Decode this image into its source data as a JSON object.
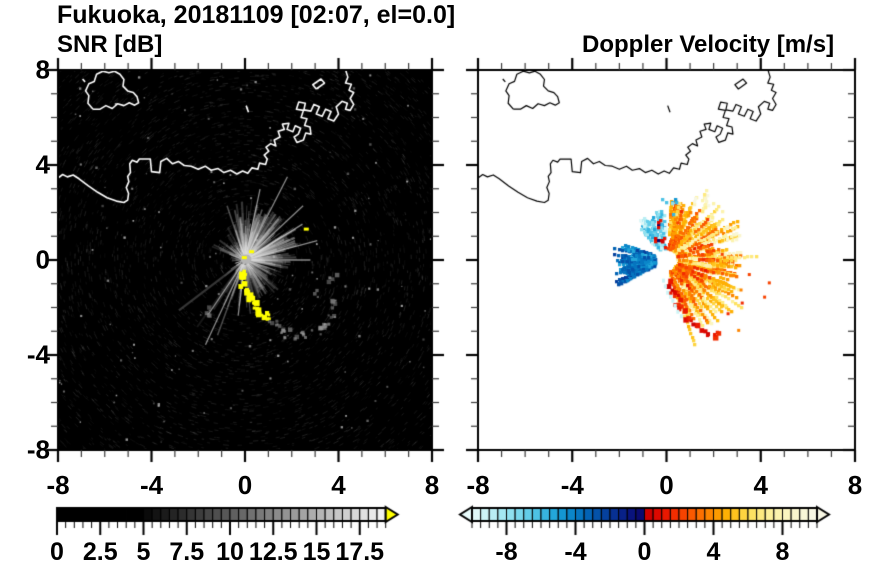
{
  "header": {
    "title": "Fukuoka, 20181109 [02:07, el=0.0]"
  },
  "panels": {
    "snr": {
      "subtitle": "SNR [dB]"
    },
    "velocity": {
      "subtitle": "Doppler Velocity [m/s]"
    }
  },
  "axes": {
    "xlim": [
      -8,
      8
    ],
    "ylim": [
      -8,
      8
    ],
    "x_tick_values": [
      -8,
      -4,
      0,
      4,
      8
    ],
    "x_tick_labels": [
      "-8",
      "-4",
      "0",
      "4",
      "8"
    ],
    "y_tick_values": [
      8,
      4,
      0,
      -4,
      -8
    ],
    "y_tick_labels": [
      "8",
      "4",
      "0",
      "-4",
      "-8"
    ],
    "minor_step": 1
  },
  "colorbars": {
    "snr": {
      "range": [
        0,
        19
      ],
      "cell_step": 0.5,
      "black_below": 5,
      "tick_values": [
        0,
        2.5,
        5,
        7.5,
        10,
        12.5,
        15,
        17.5
      ],
      "tick_labels": [
        "0",
        "2.5",
        "5",
        "7.5",
        "10",
        "12.5",
        "15",
        "17.5"
      ],
      "minor_step": 0.5,
      "over_arrow_color": "#ffff00"
    },
    "velocity": {
      "range": [
        -10,
        10
      ],
      "cell_step": 0.5,
      "tick_values": [
        -8,
        -4,
        0,
        4,
        8
      ],
      "tick_labels": [
        "-8",
        "-4",
        "0",
        "4",
        "8"
      ],
      "minor_step": 0.5,
      "under_arrow_color": "#e8fbfb",
      "over_arrow_color": "#f8f7e4",
      "palette_negative": [
        "#e0f8f8",
        "#cdf4f6",
        "#b9eef4",
        "#a4e8f2",
        "#8fe0ef",
        "#79d7ec",
        "#63cde9",
        "#4dc2e5",
        "#37b5e0",
        "#23a7da",
        "#1497d2",
        "#0b86c9",
        "#0675bf",
        "#0363b4",
        "#0452a9",
        "#05419e",
        "#073093",
        "#082188",
        "#09137d",
        "#0a0a70"
      ],
      "palette_positive": [
        "#cd0000",
        "#dd0800",
        "#ea1800",
        "#f22d00",
        "#f84300",
        "#fb5900",
        "#fc6f00",
        "#fd8500",
        "#fd9b00",
        "#feb004",
        "#fec31e",
        "#fed440",
        "#fee262",
        "#feea80",
        "#fdf09a",
        "#fcf3ae",
        "#fbf5c0",
        "#faf6ce",
        "#f9f7d8",
        "#f8f7e2"
      ]
    }
  },
  "chart_data": [
    {
      "type": "heatmap",
      "title": "SNR [dB]",
      "units": "dB",
      "xlim": [
        -8,
        8
      ],
      "ylim": [
        -8,
        8
      ],
      "radar_center": [
        0,
        0
      ],
      "background": "#000000",
      "fan_sectors": [
        {
          "az": [
            340,
            460
          ],
          "rmax": 2.6,
          "snr": [
            7,
            16
          ],
          "n": 260
        },
        {
          "az": [
            100,
            170
          ],
          "rmax": 1.9,
          "snr": [
            6,
            11
          ],
          "n": 100
        },
        {
          "az": [
            170,
            200
          ],
          "rmax": 2.6,
          "snr": [
            6,
            12
          ],
          "n": 30
        },
        {
          "az": [
            200,
            235
          ],
          "rmax": 4.0,
          "snr": [
            8,
            15
          ],
          "n": 16
        },
        {
          "az": [
            285,
            340
          ],
          "rmax": 1.6,
          "snr": [
            6,
            9
          ],
          "n": 45
        }
      ],
      "bright_rays": [
        [
          27,
          4.0
        ],
        [
          12,
          3.1
        ],
        [
          47,
          3.4
        ],
        [
          58,
          2.9
        ],
        [
          90,
          2.8
        ],
        [
          75,
          3.2
        ],
        [
          205,
          4.0
        ],
        [
          214,
          2.8
        ],
        [
          187,
          2.4
        ]
      ],
      "saturated_arc": [
        [
          -0.12,
          -0.5
        ],
        [
          -0.18,
          -0.75
        ],
        [
          -0.12,
          -1.0
        ],
        [
          -0.02,
          -1.22
        ],
        [
          0.1,
          -1.42
        ],
        [
          0.22,
          -1.6
        ],
        [
          0.33,
          -1.8
        ],
        [
          0.46,
          -1.98
        ],
        [
          0.6,
          -2.12
        ],
        [
          0.78,
          -2.28
        ],
        [
          0.95,
          -2.35
        ]
      ],
      "saturated_specks": [
        [
          2.6,
          1.3
        ],
        [
          0.26,
          0.35
        ],
        [
          -0.05,
          0.1
        ]
      ],
      "clutter_blobs": [
        [
          1.1,
          -2.62
        ],
        [
          1.45,
          -2.85
        ],
        [
          1.8,
          -3.05
        ],
        [
          2.2,
          -3.15
        ],
        [
          2.6,
          -3.1
        ],
        [
          3.0,
          -2.95
        ],
        [
          3.3,
          -2.6
        ],
        [
          3.6,
          -2.15
        ],
        [
          3.85,
          -1.6
        ],
        [
          3.65,
          -0.7
        ],
        [
          2.95,
          -1.35
        ],
        [
          -1.7,
          -2.1
        ]
      ]
    },
    {
      "type": "heatmap",
      "title": "Doppler Velocity [m/s]",
      "units": "m/s",
      "xlim": [
        -8,
        8
      ],
      "ylim": [
        -8,
        8
      ],
      "radar_center": [
        0,
        0
      ],
      "background": "#ffffff",
      "sectors": [
        {
          "name": "west-approaching-fan",
          "az": [
            242,
            290
          ],
          "r": [
            0.35,
            1.75
          ],
          "vel": [
            -5.5,
            -2.5
          ],
          "n": 120,
          "run": [
            2,
            5
          ]
        },
        {
          "name": "nw-strong-approaching-patch",
          "az": [
            320,
            358
          ],
          "r": [
            0.35,
            1.95
          ],
          "vel": [
            -9.5,
            -5.5
          ],
          "n": 80,
          "run": [
            1,
            3
          ]
        },
        {
          "name": "nw-red-specks",
          "az": [
            322,
            356
          ],
          "r": [
            0.5,
            1.7
          ],
          "vel": [
            0.3,
            1.5
          ],
          "n": 12,
          "run": [
            1,
            1
          ]
        },
        {
          "name": "nne-receding-fan",
          "az": [
            3,
            40
          ],
          "r": [
            0.35,
            2.2
          ],
          "vel": [
            2,
            6
          ],
          "n": 70,
          "run": [
            2,
            5
          ]
        },
        {
          "name": "east-receding-fan",
          "az": [
            40,
            168
          ],
          "r": [
            0.35,
            2.7
          ],
          "vel": [
            3,
            8.5
          ],
          "n": 200,
          "run": [
            3,
            8
          ]
        },
        {
          "name": "east-orange-clumps",
          "az": [
            60,
            165
          ],
          "r": [
            0.4,
            1.8
          ],
          "vel": [
            1.5,
            4
          ],
          "n": 60,
          "run": [
            2,
            4
          ]
        },
        {
          "name": "far-pale-sparse",
          "az": [
            25,
            75
          ],
          "r": [
            2.6,
            3.3
          ],
          "vel": [
            7,
            9.5
          ],
          "n": 25,
          "run": [
            1,
            2
          ]
        },
        {
          "name": "north-blue-specks",
          "az": [
            348,
            372
          ],
          "r": [
            1.9,
            2.7
          ],
          "vel": [
            -8,
            -5
          ],
          "n": 10,
          "run": [
            1,
            1
          ]
        }
      ],
      "south_arc": [
        [
          0.02,
          -0.85
        ],
        [
          0.1,
          -1.05
        ],
        [
          0.2,
          -1.3
        ],
        [
          0.32,
          -1.5
        ],
        [
          0.42,
          -1.7
        ],
        [
          0.52,
          -1.9
        ],
        [
          0.63,
          -2.1
        ],
        [
          0.78,
          -2.3
        ],
        [
          0.95,
          -2.5
        ],
        [
          1.15,
          -2.7
        ],
        [
          1.45,
          -2.85
        ],
        [
          1.75,
          -3.0
        ],
        [
          2.05,
          -3.1
        ]
      ],
      "south_arc_vel": [
        0.2,
        2.0
      ],
      "south_arc_edge_vel": -9.5,
      "specks": [
        [
          3.1,
          -1.2
        ],
        [
          3.15,
          -1.75
        ],
        [
          4.1,
          -1.5
        ],
        [
          3.0,
          -2.9
        ],
        [
          2.55,
          -2.2
        ],
        [
          3.45,
          -0.55
        ],
        [
          2.3,
          0.3
        ],
        [
          4.3,
          -0.9
        ]
      ],
      "specks_vel": [
        1.5,
        4
      ],
      "center_hole_radius": 0.3
    }
  ],
  "coastline": {
    "stroke_snr": "#ffffff",
    "stroke_velocity": "#000000",
    "polylines": [
      [
        [
          -8,
          3.45
        ],
        [
          -7.8,
          3.6
        ],
        [
          -7.6,
          3.5
        ],
        [
          -7.35,
          3.58
        ],
        [
          -7.1,
          3.42
        ],
        [
          -6.7,
          3.12
        ],
        [
          -6.3,
          2.85
        ],
        [
          -5.9,
          2.62
        ],
        [
          -5.5,
          2.48
        ],
        [
          -5.18,
          2.42
        ],
        [
          -5.02,
          2.52
        ],
        [
          -4.98,
          2.8
        ],
        [
          -5.08,
          3.05
        ],
        [
          -4.97,
          3.3
        ],
        [
          -5.02,
          3.52
        ],
        [
          -4.9,
          3.68
        ],
        [
          -4.93,
          4.05
        ],
        [
          -4.82,
          4.2
        ],
        [
          -4.62,
          4.12
        ],
        [
          -4.52,
          4.25
        ],
        [
          -4.05,
          4.25
        ],
        [
          -4.0,
          3.72
        ],
        [
          -3.65,
          3.68
        ],
        [
          -3.6,
          4.15
        ],
        [
          -3.35,
          4.28
        ],
        [
          -3.1,
          4.05
        ],
        [
          -2.85,
          4.15
        ],
        [
          -2.6,
          3.98
        ],
        [
          -2.3,
          3.95
        ],
        [
          -2.0,
          3.82
        ],
        [
          -1.7,
          3.95
        ],
        [
          -1.45,
          3.78
        ],
        [
          -1.15,
          3.85
        ],
        [
          -0.9,
          3.68
        ],
        [
          -0.62,
          3.78
        ],
        [
          -0.35,
          3.62
        ],
        [
          -0.1,
          3.75
        ],
        [
          0.12,
          3.65
        ],
        [
          0.3,
          3.88
        ],
        [
          0.55,
          3.82
        ],
        [
          0.62,
          4.08
        ],
        [
          0.88,
          4.02
        ],
        [
          0.95,
          4.25
        ],
        [
          0.82,
          4.42
        ],
        [
          1.02,
          4.58
        ],
        [
          0.9,
          4.75
        ],
        [
          1.1,
          4.9
        ],
        [
          1.32,
          4.8
        ],
        [
          1.25,
          5.05
        ],
        [
          1.5,
          5.18
        ],
        [
          1.42,
          5.42
        ],
        [
          1.68,
          5.5
        ],
        [
          1.6,
          5.72
        ],
        [
          1.88,
          5.76
        ],
        [
          1.8,
          5.5
        ],
        [
          2.05,
          5.4
        ],
        [
          2.15,
          5.65
        ],
        [
          2.38,
          5.55
        ],
        [
          2.28,
          5.3
        ],
        [
          2.1,
          5.18
        ],
        [
          2.22,
          4.95
        ],
        [
          2.5,
          5.05
        ],
        [
          2.6,
          5.35
        ],
        [
          2.82,
          5.3
        ],
        [
          2.78,
          5.6
        ],
        [
          2.55,
          5.66
        ],
        [
          2.65,
          5.95
        ],
        [
          2.4,
          6.0
        ],
        [
          2.5,
          6.3
        ],
        [
          2.2,
          6.35
        ],
        [
          2.3,
          6.65
        ],
        [
          2.58,
          6.6
        ],
        [
          2.52,
          6.32
        ],
        [
          2.82,
          6.27
        ],
        [
          2.95,
          6.55
        ],
        [
          3.18,
          6.45
        ],
        [
          3.05,
          6.15
        ],
        [
          3.3,
          6.05
        ],
        [
          3.45,
          6.35
        ],
        [
          3.68,
          6.25
        ],
        [
          3.55,
          5.95
        ],
        [
          3.8,
          5.85
        ],
        [
          4.0,
          6.15
        ],
        [
          3.9,
          6.45
        ],
        [
          4.15,
          6.68
        ],
        [
          4.38,
          6.6
        ],
        [
          4.3,
          6.35
        ],
        [
          4.5,
          6.3
        ],
        [
          4.65,
          6.55
        ],
        [
          4.5,
          6.8
        ],
        [
          4.65,
          7.05
        ],
        [
          4.45,
          7.15
        ],
        [
          4.55,
          7.4
        ],
        [
          4.3,
          7.45
        ],
        [
          4.4,
          7.7
        ],
        [
          4.32,
          7.95
        ],
        [
          4.38,
          8.0
        ]
      ],
      [
        [
          -6.5,
          6.35
        ],
        [
          -6.72,
          6.6
        ],
        [
          -6.68,
          6.92
        ],
        [
          -6.82,
          7.12
        ],
        [
          -6.68,
          7.42
        ],
        [
          -6.45,
          7.52
        ],
        [
          -6.35,
          7.82
        ],
        [
          -6.08,
          7.95
        ],
        [
          -5.82,
          7.88
        ],
        [
          -5.58,
          7.95
        ],
        [
          -5.35,
          7.82
        ],
        [
          -5.18,
          7.6
        ],
        [
          -5.22,
          7.32
        ],
        [
          -5.02,
          7.12
        ],
        [
          -4.78,
          7.05
        ],
        [
          -4.62,
          6.88
        ],
        [
          -4.55,
          6.62
        ],
        [
          -4.72,
          6.52
        ],
        [
          -4.95,
          6.62
        ],
        [
          -5.18,
          6.5
        ],
        [
          -5.45,
          6.58
        ],
        [
          -5.68,
          6.38
        ],
        [
          -5.95,
          6.5
        ],
        [
          -6.2,
          6.35
        ],
        [
          -6.5,
          6.35
        ]
      ],
      [
        [
          3.05,
          7.2
        ],
        [
          3.4,
          7.45
        ],
        [
          3.25,
          7.62
        ],
        [
          2.9,
          7.38
        ],
        [
          3.05,
          7.2
        ]
      ],
      [
        [
          0.05,
          6.5
        ],
        [
          0.15,
          6.22
        ]
      ],
      [
        [
          -6.95,
          7.62
        ],
        [
          -6.84,
          7.5
        ]
      ]
    ]
  }
}
